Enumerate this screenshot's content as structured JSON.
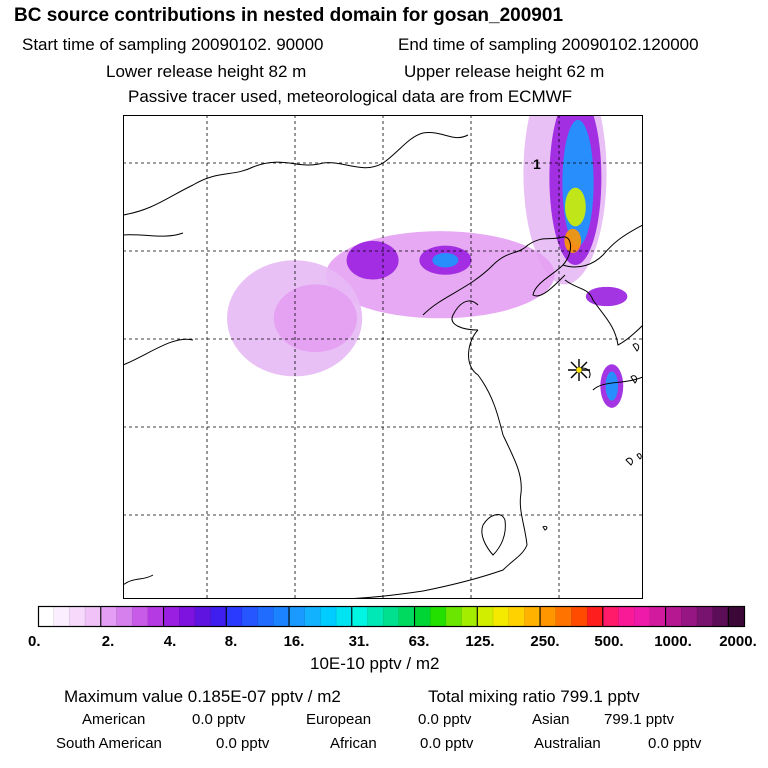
{
  "header": {
    "title": "BC  source contributions in nested domain for gosan_200901",
    "start_time": "Start time of sampling 20090102. 90000",
    "end_time": "End time of sampling 20090102.120000",
    "lower_height": "Lower release height   82 m",
    "upper_height": "Upper release height   62 m",
    "note": "Passive tracer used, meteorological data are from ECMWF"
  },
  "chart_data": {
    "type": "heatmap",
    "title": "BC  source contributions in nested domain for gosan_200901",
    "xlabel": "",
    "ylabel": "",
    "grid": true,
    "colorbar": {
      "unit": "10E-10 pptv / m2",
      "ticks": [
        "0.",
        "2.",
        "4.",
        "8.",
        "16.",
        "31.",
        "63.",
        "125.",
        "250.",
        "500.",
        "1000.",
        "2000."
      ],
      "colors": [
        "#ffffff",
        "#fbeefe",
        "#f6d9fb",
        "#f0c2f8",
        "#e49ef3",
        "#d680ee",
        "#c85ce9",
        "#b53ae4",
        "#9a1fe0",
        "#7e12de",
        "#5f14e0",
        "#3f1ef0",
        "#2a3bff",
        "#2656ff",
        "#1f6cff",
        "#1b83ff",
        "#1a99ff",
        "#12b2ff",
        "#00ccff",
        "#00e4f2",
        "#00f5e2",
        "#00e8b6",
        "#00e08e",
        "#00da5e",
        "#00d536",
        "#23e000",
        "#6ae600",
        "#a4ec00",
        "#d2ee00",
        "#f3ea00",
        "#ffd200",
        "#ffb300",
        "#ff9600",
        "#ff7300",
        "#ff4b00",
        "#ff1e1e",
        "#ff1a6a",
        "#f81a96",
        "#ee1aaa",
        "#d21a9e",
        "#b51890",
        "#961684",
        "#781370",
        "#5b0e56",
        "#3c0838"
      ],
      "major_every": 4
    },
    "max_value": "Maximum value  0.185E-07 pptv / m2",
    "total_mixing": "Total mixing ratio      799.1 pptv",
    "receptor_marker": "star",
    "plume_label": "1",
    "blobs": [
      {
        "cx": 0.85,
        "cy": 0.12,
        "rx": 0.08,
        "ry": 0.23,
        "level": "0.02"
      },
      {
        "cx": 0.87,
        "cy": 0.13,
        "rx": 0.05,
        "ry": 0.18,
        "level": "4."
      },
      {
        "cx": 0.875,
        "cy": 0.14,
        "rx": 0.03,
        "ry": 0.13,
        "level": "16."
      },
      {
        "cx": 0.87,
        "cy": 0.19,
        "rx": 0.02,
        "ry": 0.04,
        "level": "125."
      },
      {
        "cx": 0.865,
        "cy": 0.26,
        "rx": 0.016,
        "ry": 0.025,
        "level": "250."
      },
      {
        "cx": 0.61,
        "cy": 0.33,
        "rx": 0.22,
        "ry": 0.09,
        "level": "2."
      },
      {
        "cx": 0.62,
        "cy": 0.3,
        "rx": 0.05,
        "ry": 0.03,
        "level": "4."
      },
      {
        "cx": 0.33,
        "cy": 0.42,
        "rx": 0.13,
        "ry": 0.12,
        "level": "0.5"
      },
      {
        "cx": 0.37,
        "cy": 0.42,
        "rx": 0.08,
        "ry": 0.07,
        "level": "2."
      },
      {
        "cx": 0.48,
        "cy": 0.3,
        "rx": 0.05,
        "ry": 0.04,
        "level": "4."
      },
      {
        "cx": 0.62,
        "cy": 0.3,
        "rx": 0.025,
        "ry": 0.015,
        "level": "16."
      },
      {
        "cx": 0.93,
        "cy": 0.375,
        "rx": 0.04,
        "ry": 0.02,
        "level": "4."
      },
      {
        "cx": 0.94,
        "cy": 0.56,
        "rx": 0.022,
        "ry": 0.045,
        "level": "4."
      },
      {
        "cx": 0.94,
        "cy": 0.56,
        "rx": 0.012,
        "ry": 0.03,
        "level": "16."
      }
    ]
  },
  "footer": {
    "american_label": "American",
    "american_val": "0.0 pptv",
    "european_label": "European",
    "european_val": "0.0 pptv",
    "asian_label": "Asian",
    "asian_val": "799.1 pptv",
    "southamerican_label": "South American",
    "southamerican_val": "0.0 pptv",
    "african_label": "African",
    "african_val": "0.0 pptv",
    "australian_label": "Australian",
    "australian_val": "0.0 pptv"
  }
}
